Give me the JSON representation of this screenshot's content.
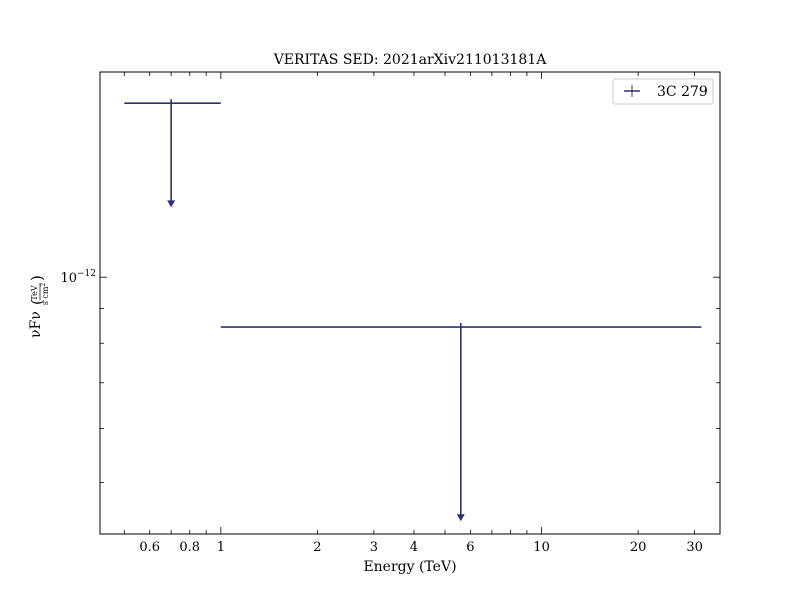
{
  "chart_data": {
    "type": "scatter",
    "title": "VERITAS SED: 2021arXiv211013181A",
    "xlabel": "Energy (TeV)",
    "ylabel_main": "νFν",
    "ylabel_unit_num": "TeV",
    "ylabel_unit_den": "s cm",
    "ylabel_unit_den_exp": "2",
    "xscale": "log",
    "yscale": "log",
    "xlim": [
      0.42,
      36
    ],
    "ylim": [
      4.2e-13,
      2e-12
    ],
    "x_tick_labels": [
      "0.6",
      "0.8",
      "1",
      "2",
      "3",
      "4",
      "6",
      "10",
      "20",
      "30"
    ],
    "y_tick_label": {
      "base": "10",
      "exp": "−12",
      "value": 1e-12
    },
    "legend_position": "upper right",
    "series": [
      {
        "name": "3C 279",
        "color": "#2e3171",
        "marker": "+",
        "upper_limits": true,
        "points": [
          {
            "x": 0.7,
            "x_low": 0.5,
            "x_high": 1.0,
            "y": 1.8e-12,
            "arrow_to": 1.27e-12
          },
          {
            "x": 5.6,
            "x_low": 1.0,
            "x_high": 31.5,
            "y": 8.45e-13,
            "arrow_to": 4.4e-13
          }
        ]
      }
    ]
  }
}
